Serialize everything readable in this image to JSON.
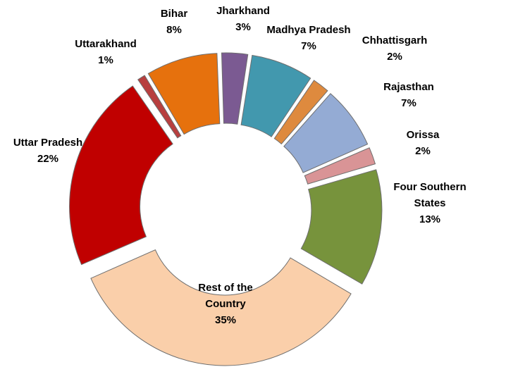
{
  "chart_data": {
    "type": "pie",
    "variant": "doughnut-exploded",
    "title": "",
    "unit": "%",
    "slices": [
      {
        "name": "Jharkhand",
        "value": 3,
        "value_label": "3%",
        "label_lines": [
          "Jharkhand",
          "3%"
        ],
        "color": "#7b5a92"
      },
      {
        "name": "Madhya Pradesh",
        "value": 7,
        "value_label": "7%",
        "label_lines": [
          "Madhya Pradesh",
          "7%"
        ],
        "color": "#4298ae"
      },
      {
        "name": "Chhattisgarh",
        "value": 2,
        "value_label": "2%",
        "label_lines": [
          "Chhattisgarh",
          "2%"
        ],
        "color": "#de8a3e"
      },
      {
        "name": "Rajasthan",
        "value": 7,
        "value_label": "7%",
        "label_lines": [
          "Rajasthan",
          "7%"
        ],
        "color": "#94abd4"
      },
      {
        "name": "Orissa",
        "value": 2,
        "value_label": "2%",
        "label_lines": [
          "Orissa",
          "2%"
        ],
        "color": "#d99496"
      },
      {
        "name": "Four Southern States",
        "value": 13,
        "value_label": "13%",
        "label_lines": [
          "Four Southern",
          "States",
          "13%"
        ],
        "color": "#77933c"
      },
      {
        "name": "Rest of the Country",
        "value": 35,
        "value_label": "35%",
        "label_lines": [
          "Rest of the",
          "Country",
          "35%"
        ],
        "color": "#facfaa"
      },
      {
        "name": "Uttar Pradesh",
        "value": 22,
        "value_label": "22%",
        "label_lines": [
          "Uttar Pradesh",
          "22%"
        ],
        "color": "#c00000"
      },
      {
        "name": "Uttarakhand",
        "value": 1,
        "value_label": "1%",
        "label_lines": [
          "Uttarakhand",
          "1%"
        ],
        "color": "#b83f3f"
      },
      {
        "name": "Bihar",
        "value": 8,
        "value_label": "8%",
        "label_lines": [
          "Bihar",
          "8%"
        ],
        "color": "#e6710d"
      }
    ]
  }
}
